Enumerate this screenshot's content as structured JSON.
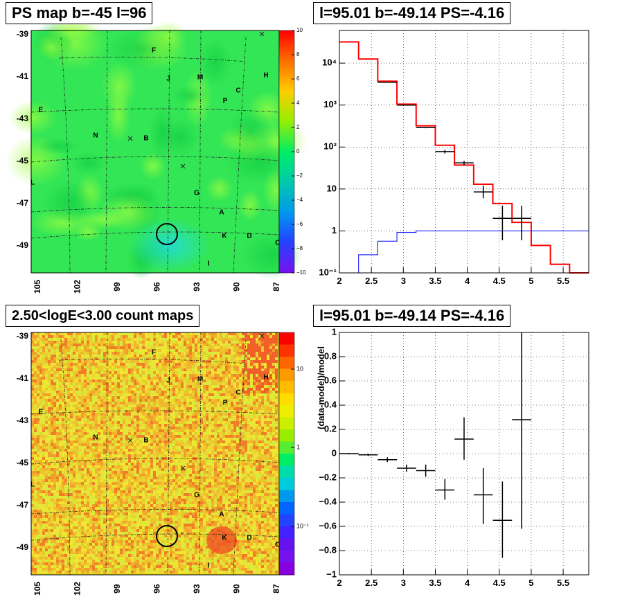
{
  "panels": {
    "ps_map": {
      "title": "PS map b=-45 l=96",
      "x_ticks": [
        "105",
        "102",
        "99",
        "96",
        "93",
        "90",
        "87"
      ],
      "y_ticks": [
        "-39",
        "-41",
        "-43",
        "-45",
        "-47",
        "-49"
      ],
      "colorbar_ticks": [
        "10",
        "8",
        "6",
        "4",
        "2",
        "0",
        "−2",
        "−4",
        "−6",
        "−8",
        "−10"
      ],
      "colorbar_range": [
        -10,
        10
      ],
      "source_labels": [
        "F",
        "J",
        "M",
        "H",
        "C",
        "P",
        "E",
        "N",
        "B",
        "G",
        "A",
        "K",
        "D",
        "L",
        "I",
        "O"
      ]
    },
    "count_map": {
      "title": "2.50<logE<3.00 count maps",
      "x_ticks": [
        "105",
        "102",
        "99",
        "96",
        "93",
        "90",
        "87"
      ],
      "y_ticks": [
        "-39",
        "-41",
        "-43",
        "-45",
        "-47",
        "-49"
      ],
      "colorbar_ticks": [
        "10",
        "1",
        "10⁻¹"
      ],
      "colorbar_scale": "log",
      "source_labels": [
        "F",
        "J",
        "M",
        "H",
        "C",
        "P",
        "E",
        "N",
        "B",
        "G",
        "A",
        "K",
        "D",
        "L",
        "I",
        "O"
      ]
    }
  },
  "chart_data": [
    {
      "type": "line",
      "title": "l=95.01 b=-49.14 PS=-4.16",
      "xlim": [
        2,
        5.9
      ],
      "ylim": [
        0.1,
        60000
      ],
      "yscale": "log",
      "grid": true,
      "x_ticks": [
        "2",
        "2.5",
        "3",
        "3.5",
        "4",
        "4.5",
        "5",
        "5.5"
      ],
      "y_ticks": [
        "10⁻¹",
        "1",
        "10",
        "10²",
        "10³",
        "10⁴"
      ],
      "series": [
        {
          "style": "step",
          "color": "#ff0000",
          "bin_edges": [
            2.0,
            2.3,
            2.6,
            2.9,
            3.2,
            3.5,
            3.8,
            4.1,
            4.4,
            4.7,
            5.0,
            5.3,
            5.6,
            5.9
          ],
          "values": [
            32000,
            12500,
            3700,
            1050,
            320,
            110,
            37,
            13,
            4.5,
            1.6,
            0.45,
            0.16,
            0.07
          ]
        },
        {
          "style": "step",
          "color": "#0000ff",
          "bin_edges": [
            2.3,
            2.6,
            2.9,
            3.2,
            3.5,
            3.8,
            4.1,
            4.4,
            4.7,
            5.0,
            5.3,
            5.6,
            5.9
          ],
          "values": [
            0.27,
            0.57,
            0.92,
            1.0,
            1.0,
            1.0,
            1.0,
            1.0,
            1.0,
            1.0,
            1.0,
            1.0
          ]
        },
        {
          "style": "errorbar",
          "color": "#000000",
          "x": [
            2.75,
            3.05,
            3.35,
            3.65,
            3.95,
            4.25,
            4.55,
            4.85
          ],
          "x_halfwidth": 0.15,
          "y": [
            3500,
            1000,
            290,
            78,
            42,
            8.5,
            2.0,
            2.0
          ],
          "y_low": [
            3450,
            980,
            280,
            70,
            37,
            6.0,
            0.6,
            0.6
          ],
          "y_high": [
            3560,
            1030,
            300,
            85,
            47,
            12.0,
            4.0,
            4.0
          ]
        }
      ]
    },
    {
      "type": "scatter",
      "title": "l=95.01 b=-49.14 PS=-4.16",
      "ylabel": "(data-model)/model",
      "xlim": [
        2,
        5.9
      ],
      "ylim": [
        -1,
        1
      ],
      "grid": true,
      "x_ticks": [
        "2",
        "2.5",
        "3",
        "3.5",
        "4",
        "4.5",
        "5",
        "5.5"
      ],
      "y_ticks": [
        "−1",
        "−0.8",
        "−0.6",
        "−0.4",
        "−0.2",
        "0",
        "0.2",
        "0.4",
        "0.6",
        "0.8",
        "1"
      ],
      "series": [
        {
          "style": "errorbar",
          "color": "#000000",
          "x": [
            2.15,
            2.45,
            2.75,
            3.05,
            3.35,
            3.65,
            3.95,
            4.25,
            4.55,
            4.85
          ],
          "x_halfwidth": 0.15,
          "y": [
            0.0,
            -0.01,
            -0.05,
            -0.12,
            -0.14,
            -0.3,
            0.12,
            -0.34,
            -0.55,
            0.28
          ],
          "y_low": [
            -0.005,
            -0.02,
            -0.07,
            -0.15,
            -0.19,
            -0.38,
            -0.05,
            -0.58,
            -0.86,
            -0.62
          ],
          "y_high": [
            0.005,
            0.0,
            -0.03,
            -0.09,
            -0.09,
            -0.21,
            0.3,
            -0.12,
            -0.23,
            1.0
          ]
        }
      ]
    }
  ]
}
